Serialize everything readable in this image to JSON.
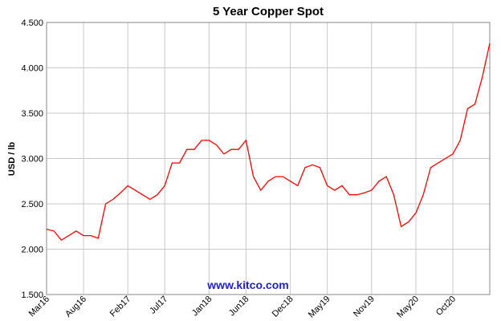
{
  "chart_data": {
    "type": "line",
    "title": "5 Year Copper Spot",
    "y_label": "USD / lb",
    "watermark": "www.kitco.com",
    "categories": [
      "Mar16",
      null,
      null,
      null,
      null,
      "Aug16",
      null,
      null,
      null,
      null,
      null,
      "Feb17",
      null,
      null,
      null,
      null,
      "Jul17",
      null,
      null,
      null,
      null,
      null,
      "Jan18",
      null,
      null,
      null,
      null,
      "Jun18",
      null,
      null,
      null,
      null,
      null,
      "Dec18",
      null,
      null,
      null,
      null,
      "May19",
      null,
      null,
      null,
      null,
      null,
      "Nov19",
      null,
      null,
      null,
      null,
      null,
      "May20",
      null,
      null,
      null,
      null,
      "Oct20",
      null,
      null,
      null,
      null,
      null
    ],
    "series": [
      {
        "name": "Copper",
        "color": "#ff0000",
        "values": [
          2.22,
          2.2,
          2.1,
          2.15,
          2.2,
          2.15,
          2.15,
          2.12,
          2.5,
          2.55,
          2.62,
          2.7,
          2.65,
          2.6,
          2.55,
          2.6,
          2.7,
          2.95,
          2.95,
          3.1,
          3.1,
          3.2,
          3.2,
          3.15,
          3.05,
          3.1,
          3.1,
          3.2,
          2.8,
          2.65,
          2.75,
          2.8,
          2.8,
          2.75,
          2.7,
          2.9,
          2.93,
          2.9,
          2.7,
          2.65,
          2.7,
          2.6,
          2.6,
          2.62,
          2.65,
          2.75,
          2.8,
          2.6,
          2.25,
          2.3,
          2.4,
          2.6,
          2.9,
          2.95,
          3.0,
          3.05,
          3.2,
          3.55,
          3.6,
          3.9,
          4.27
        ]
      }
    ],
    "ylim": [
      1.5,
      4.5
    ],
    "yticks": [
      {
        "value": 1.5,
        "label": "1.500"
      },
      {
        "value": 2,
        "label": "2.000"
      },
      {
        "value": 2.5,
        "label": "2.500"
      },
      {
        "value": 3,
        "label": "3.000"
      },
      {
        "value": 3.5,
        "label": "3.500"
      },
      {
        "value": 4,
        "label": "4.000"
      },
      {
        "value": 4.5,
        "label": "4.500"
      }
    ],
    "grid": true
  }
}
